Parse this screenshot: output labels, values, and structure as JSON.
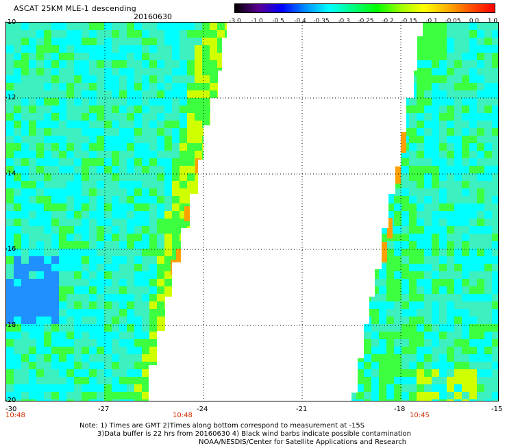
{
  "header": {
    "title": "ASCAT 25KM MLE-1 descending",
    "date": "20160630"
  },
  "colorbar": {
    "labels": [
      "-3.0",
      "-1.0",
      "-0.5",
      "-0.4",
      "-0.35",
      "-0.3",
      "-0.25",
      "-0.2",
      "-0.15",
      "-0.1",
      "-0.05",
      "0.0",
      "1.0"
    ],
    "colors": [
      "#000000",
      "#5a0092",
      "#0000ff",
      "#0090ff",
      "#00ffff",
      "#00ff80",
      "#00ff00",
      "#9aff00",
      "#ffff00",
      "#ffb000",
      "#ff5000",
      "#ff0000"
    ]
  },
  "map": {
    "lat_labels": [
      "-10",
      "-12",
      "-14",
      "-16",
      "-18",
      "-20"
    ],
    "lon_labels": [
      "-30",
      "-27",
      "-24",
      "-21",
      "-18",
      "-15"
    ],
    "times": [
      "10:48",
      "10:48",
      "10:45"
    ],
    "colors": {
      "background": "#ffffff",
      "swath_base": "#3df0c0",
      "swath_cyan": "#00ffff",
      "swath_green": "#3cff40",
      "swath_yellow": "#d0ff00",
      "swath_orange": "#ffa000",
      "swath_blue": "#2090ff"
    }
  },
  "notes": {
    "line1": "Note: 1) Times are GMT 2)Times along bottom correspond to measurement at -15S",
    "line2": "3)Data buffer is 22 hrs from 20160630 4) Black wind barbs indicate possible contamination",
    "line3": "NOAA/NESDIS/Center for Satellite Applications and Research"
  }
}
